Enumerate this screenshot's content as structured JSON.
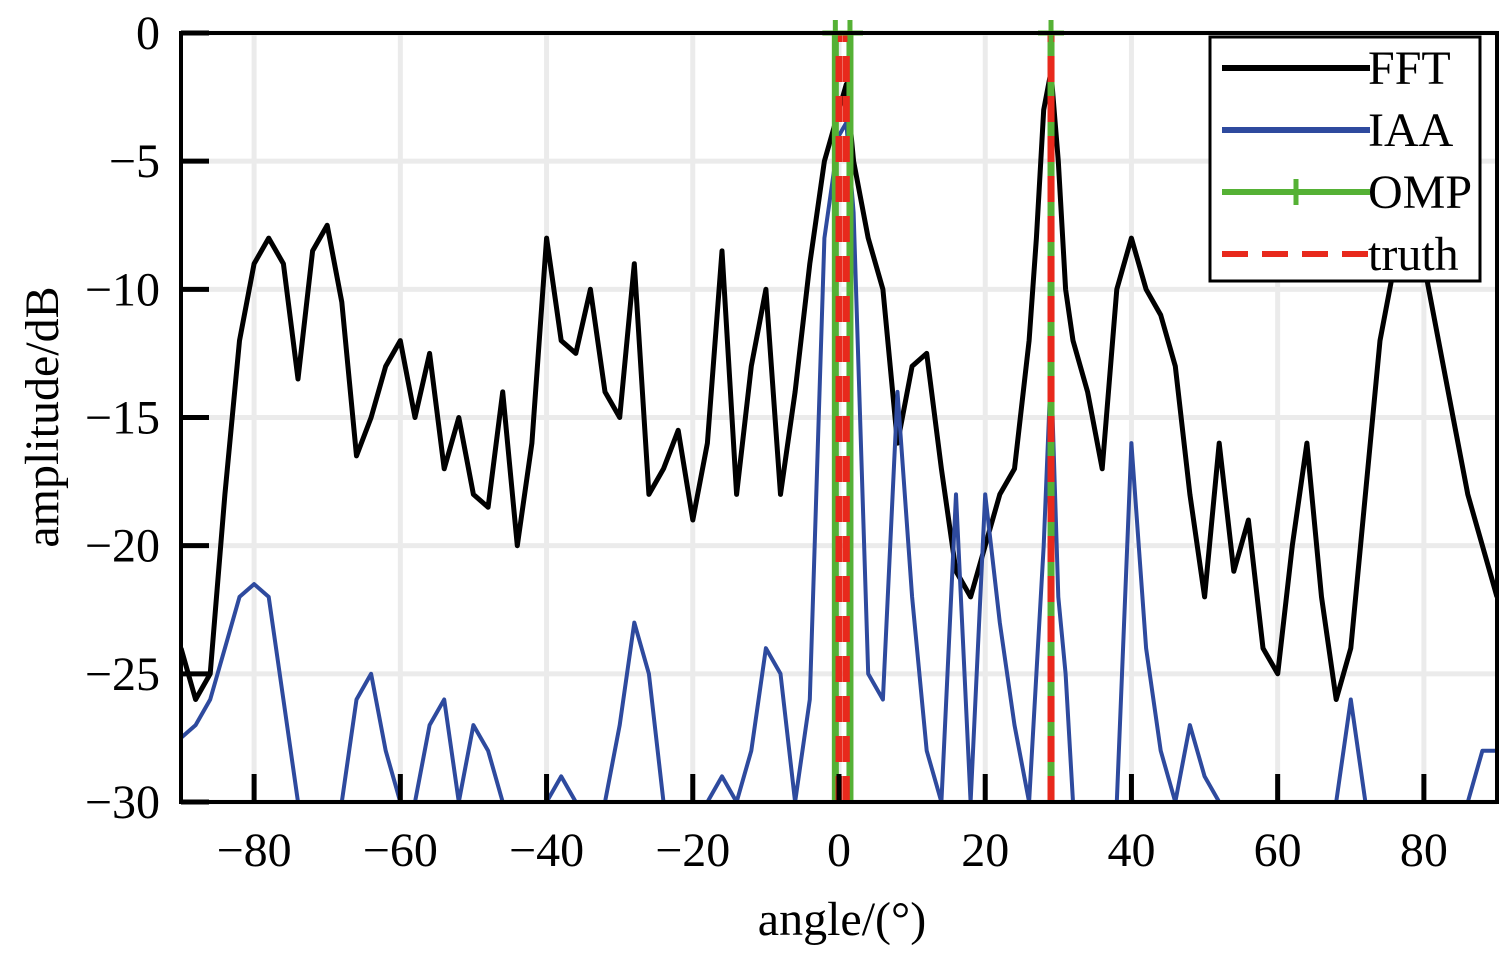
{
  "chart_data": {
    "type": "line",
    "title": "",
    "xlabel": "angle/(°)",
    "ylabel": "amplitude/dB",
    "xlim": [
      -90,
      90
    ],
    "ylim": [
      -30,
      0
    ],
    "xticks": [
      -80,
      -60,
      -40,
      -20,
      0,
      20,
      40,
      60,
      80
    ],
    "yticks": [
      0,
      -5,
      -10,
      -15,
      -20,
      -25,
      -30
    ],
    "xtick_labels": [
      "−80",
      "−60",
      "−40",
      "−20",
      "0",
      "20",
      "40",
      "60",
      "80"
    ],
    "ytick_labels": [
      "0",
      "−5",
      "−10",
      "−15",
      "−20",
      "−25",
      "−30"
    ],
    "grid": true,
    "legend_position": "top-right",
    "series": [
      {
        "name": "FFT",
        "color": "#000000",
        "style": "solid",
        "x": [
          -90,
          -88,
          -86,
          -84,
          -82,
          -80,
          -78,
          -76,
          -74,
          -72,
          -70,
          -68,
          -66,
          -64,
          -62,
          -60,
          -58,
          -56,
          -54,
          -52,
          -50,
          -48,
          -46,
          -44,
          -42,
          -40,
          -38,
          -36,
          -34,
          -32,
          -30,
          -28,
          -26,
          -24,
          -22,
          -20,
          -18,
          -16,
          -14,
          -12,
          -10,
          -8,
          -6,
          -4,
          -2,
          -1,
          0,
          1,
          2,
          4,
          6,
          8,
          10,
          12,
          14,
          16,
          18,
          20,
          22,
          24,
          26,
          27,
          28,
          29,
          30,
          31,
          32,
          34,
          36,
          38,
          40,
          42,
          44,
          46,
          48,
          50,
          52,
          54,
          56,
          58,
          60,
          62,
          64,
          66,
          68,
          70,
          72,
          74,
          76,
          78,
          80,
          82,
          84,
          86,
          88,
          90
        ],
        "y": [
          -24,
          -26,
          -25,
          -18,
          -12,
          -9,
          -8,
          -9,
          -13.5,
          -8.5,
          -7.5,
          -10.5,
          -16.5,
          -15,
          -13,
          -12,
          -15,
          -12.5,
          -17,
          -15,
          -18,
          -18.5,
          -14,
          -20,
          -16,
          -8,
          -12,
          -12.5,
          -10,
          -14,
          -15,
          -9,
          -18,
          -17,
          -15.5,
          -19,
          -16,
          -8.5,
          -18,
          -13,
          -10,
          -18,
          -14,
          -9,
          -5,
          -4,
          -3,
          -2,
          -5,
          -8,
          -10,
          -16,
          -13,
          -12.5,
          -17,
          -21,
          -22,
          -20,
          -18,
          -17,
          -12,
          -8,
          -3,
          -1.5,
          -5,
          -10,
          -12,
          -14,
          -17,
          -10,
          -8,
          -10,
          -11,
          -13,
          -18,
          -22,
          -16,
          -21,
          -19,
          -24,
          -25,
          -20,
          -16,
          -22,
          -26,
          -24,
          -18,
          -12,
          -9,
          -8.5,
          -9,
          -12,
          -15,
          -18,
          -20,
          -22
        ]
      },
      {
        "name": "IAA",
        "color": "#2e4a9e",
        "style": "solid",
        "x": [
          -90,
          -88,
          -86,
          -84,
          -82,
          -80,
          -78,
          -76,
          -74,
          -72,
          -70,
          -68,
          -66,
          -64,
          -62,
          -60,
          -58,
          -56,
          -54,
          -52,
          -50,
          -48,
          -46,
          -44,
          -42,
          -40,
          -38,
          -36,
          -34,
          -32,
          -30,
          -28,
          -26,
          -24,
          -22,
          -20,
          -18,
          -16,
          -14,
          -12,
          -10,
          -8,
          -6,
          -4,
          -2,
          -1,
          0,
          1,
          2,
          4,
          6,
          8,
          10,
          12,
          14,
          16,
          18,
          20,
          22,
          24,
          26,
          27,
          28,
          29,
          30,
          31,
          32,
          34,
          36,
          38,
          40,
          42,
          44,
          46,
          48,
          50,
          52,
          54,
          56,
          58,
          60,
          62,
          64,
          66,
          68,
          70,
          72,
          74,
          76,
          78,
          80,
          82,
          84,
          86,
          88,
          90
        ],
        "y": [
          -27.5,
          -27,
          -26,
          -24,
          -22,
          -21.5,
          -22,
          -26,
          -30,
          -30,
          -30,
          -30,
          -26,
          -25,
          -28,
          -30,
          -30,
          -27,
          -26,
          -30,
          -27,
          -28,
          -30,
          -30,
          -30,
          -30,
          -29,
          -30,
          -30,
          -30,
          -27,
          -23,
          -25,
          -30,
          -30,
          -30,
          -30,
          -29,
          -30,
          -28,
          -24,
          -25,
          -30,
          -26,
          -8,
          -6,
          -4,
          -3.5,
          -7,
          -25,
          -26,
          -14,
          -22,
          -28,
          -30,
          -18,
          -30,
          -18,
          -23,
          -27,
          -30,
          -25,
          -20,
          -13,
          -22,
          -25,
          -30,
          -30,
          -30,
          -30,
          -16,
          -24,
          -28,
          -30,
          -27,
          -29,
          -30,
          -30,
          -30,
          -30,
          -30,
          -30,
          -30,
          -30,
          -30,
          -26,
          -30,
          -30,
          -30,
          -30,
          -30,
          -30,
          -30,
          -30,
          -28,
          -28
        ]
      },
      {
        "name": "OMP",
        "color": "#55b135",
        "style": "solid-marker",
        "x": [
          -0.5,
          -0.5,
          -0.5,
          1.5,
          1.5,
          1.5,
          29,
          29,
          29
        ],
        "y": [
          -30,
          0,
          -30,
          -30,
          0,
          -30,
          -30,
          0,
          -30
        ]
      },
      {
        "name": "truth",
        "color": "#e8291c",
        "style": "dashed",
        "x": [
          0,
          0,
          1,
          1,
          29,
          29
        ],
        "y": [
          -30,
          0,
          -30,
          0,
          -30,
          0
        ]
      }
    ]
  }
}
